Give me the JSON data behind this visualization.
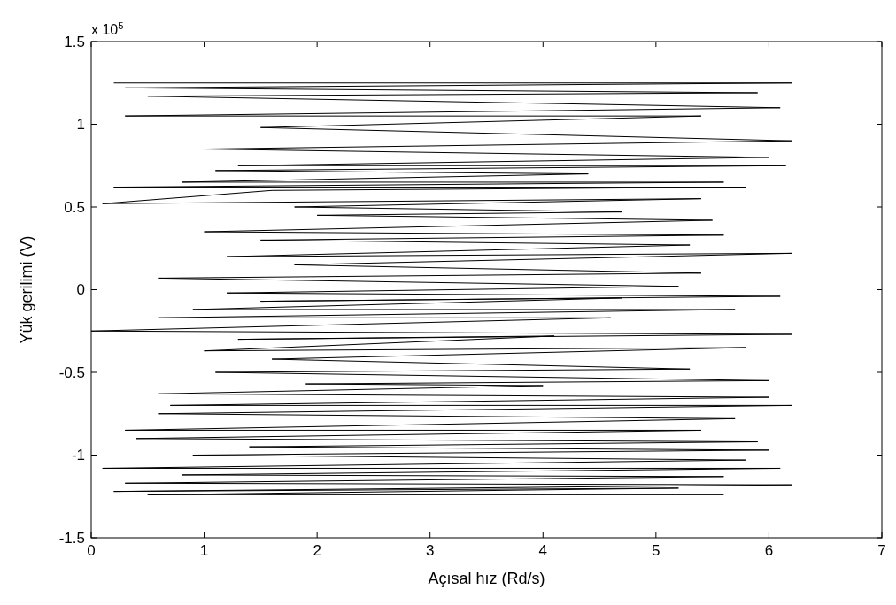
{
  "chart_data": {
    "type": "line",
    "xlabel": "Açısal hız (Rd/s)",
    "ylabel": "Yük gerilimi (V)",
    "annotations": [
      "x 10$^{5}$"
    ],
    "xlim": [
      0,
      7
    ],
    "ylim": [
      -1.5,
      1.5
    ],
    "xticks": [
      0,
      1,
      2,
      3,
      4,
      5,
      6,
      7
    ],
    "yticks": [
      -1.5,
      -1,
      -0.5,
      0,
      0.5,
      1,
      1.5
    ],
    "grid": false,
    "marker": "none",
    "line_style": "solid",
    "series": [
      {
        "color": "#000000",
        "x": [
          0.2,
          6.2,
          0.3,
          5.9,
          0.5,
          6.1,
          0.3,
          5.4,
          1.5,
          6.2,
          1.0,
          6.0,
          1.3,
          6.15,
          1.1,
          4.4,
          0.8,
          5.6,
          0.2,
          5.8,
          1.6,
          0.1,
          5.4,
          1.8,
          4.7,
          2.0,
          5.5,
          1.0,
          5.6,
          1.5,
          5.3,
          1.2,
          6.2,
          1.8,
          5.4,
          0.6,
          5.2,
          1.2,
          6.1,
          1.5,
          4.7,
          0.9,
          5.7,
          0.6,
          4.6,
          0.0,
          6.2,
          1.3,
          4.1,
          1.0,
          5.8,
          1.6,
          5.3,
          1.1,
          6.0,
          1.9,
          4.0,
          0.6,
          6.0,
          0.7,
          6.2,
          0.6,
          5.7,
          0.3,
          5.4,
          0.4,
          5.9,
          1.4,
          6.0,
          0.9,
          5.8,
          0.1,
          6.1,
          0.8,
          5.6,
          0.3,
          6.2,
          0.2,
          5.2,
          0.5,
          5.6
        ],
        "values": [
          1.25,
          1.25,
          1.22,
          1.19,
          1.17,
          1.1,
          1.05,
          1.05,
          0.98,
          0.9,
          0.85,
          0.8,
          0.75,
          0.75,
          0.72,
          0.7,
          0.65,
          0.65,
          0.62,
          0.62,
          0.6,
          0.52,
          0.55,
          0.5,
          0.47,
          0.45,
          0.42,
          0.35,
          0.33,
          0.3,
          0.27,
          0.2,
          0.22,
          0.15,
          0.1,
          0.07,
          0.02,
          -0.02,
          -0.04,
          -0.07,
          -0.05,
          -0.12,
          -0.12,
          -0.17,
          -0.17,
          -0.25,
          -0.27,
          -0.3,
          -0.28,
          -0.37,
          -0.35,
          -0.42,
          -0.48,
          -0.5,
          -0.55,
          -0.57,
          -0.58,
          -0.63,
          -0.65,
          -0.7,
          -0.7,
          -0.75,
          -0.78,
          -0.85,
          -0.85,
          -0.9,
          -0.92,
          -0.95,
          -0.97,
          -1.0,
          -1.03,
          -1.08,
          -1.08,
          -1.12,
          -1.13,
          -1.17,
          -1.18,
          -1.22,
          -1.2,
          -1.24,
          -1.24
        ]
      }
    ]
  }
}
